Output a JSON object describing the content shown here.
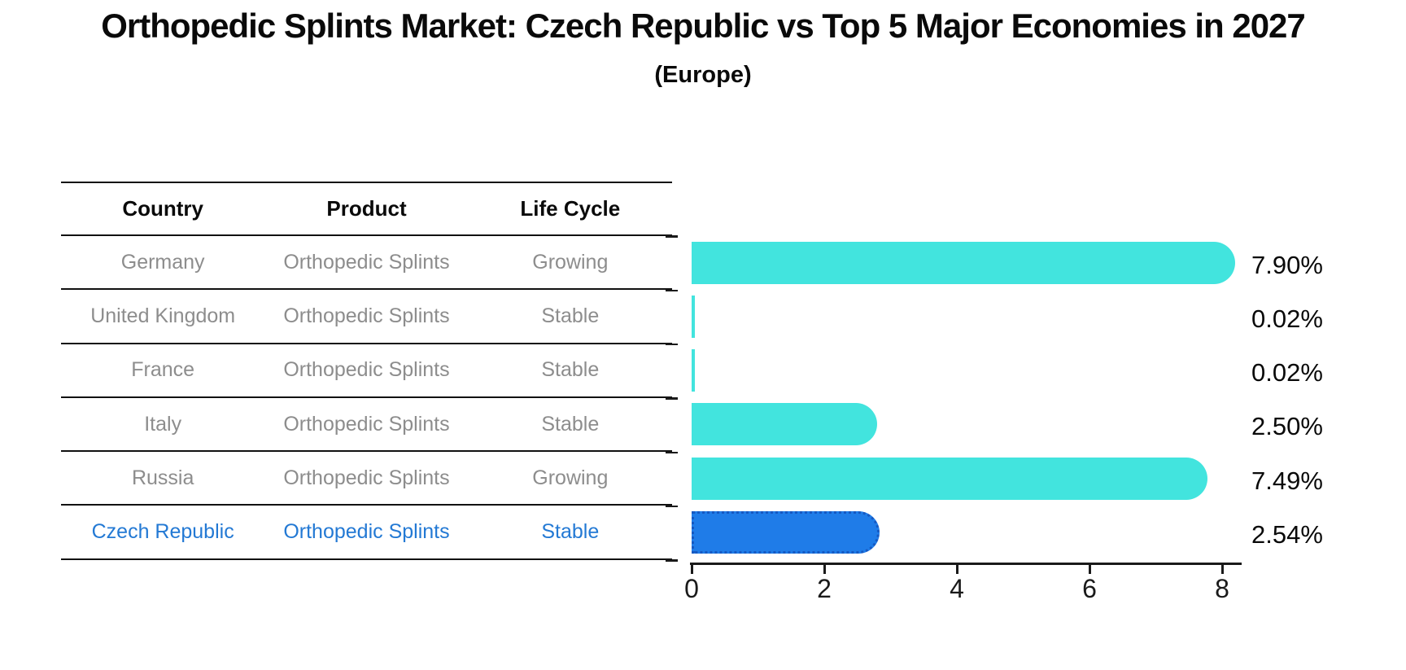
{
  "title": "Orthopedic Splints Market: Czech Republic vs Top 5 Major Economies in 2027",
  "subtitle": "(Europe)",
  "table": {
    "headers": [
      "Country",
      "Product",
      "Life Cycle"
    ],
    "rows": [
      {
        "country": "Germany",
        "product": "Orthopedic Splints",
        "life_cycle": "Growing",
        "highlight": false
      },
      {
        "country": "United Kingdom",
        "product": "Orthopedic Splints",
        "life_cycle": "Stable",
        "highlight": false
      },
      {
        "country": "France",
        "product": "Orthopedic Splints",
        "life_cycle": "Stable",
        "highlight": false
      },
      {
        "country": "Italy",
        "product": "Orthopedic Splints",
        "life_cycle": "Stable",
        "highlight": false
      },
      {
        "country": "Russia",
        "product": "Orthopedic Splints",
        "life_cycle": "Growing",
        "highlight": false
      },
      {
        "country": "Czech Republic",
        "product": "Orthopedic Splints",
        "life_cycle": "Stable",
        "highlight": true
      }
    ]
  },
  "chart_data": {
    "type": "bar",
    "orientation": "horizontal",
    "title": "Orthopedic Splints Market: Czech Republic vs Top 5 Major Economies in 2027 (Europe)",
    "categories": [
      "Germany",
      "United Kingdom",
      "France",
      "Italy",
      "Russia",
      "Czech Republic"
    ],
    "values": [
      7.9,
      0.02,
      0.02,
      2.5,
      7.49,
      2.54
    ],
    "value_labels": [
      "7.90%",
      "0.02%",
      "0.02%",
      "2.50%",
      "7.49%",
      "2.54%"
    ],
    "x_ticks": [
      0,
      2,
      4,
      6,
      8
    ],
    "x_tick_labels": [
      "0",
      "2",
      "4",
      "6",
      "8"
    ],
    "xlim": [
      0,
      8.3
    ],
    "grid": false,
    "legend": "none",
    "bar_color": "#42E4DE",
    "highlight_color": "#1F7CE8",
    "highlight_border_color": "#1659c2",
    "highlight_index": 5,
    "highlight_text_color": "#2379d4"
  }
}
